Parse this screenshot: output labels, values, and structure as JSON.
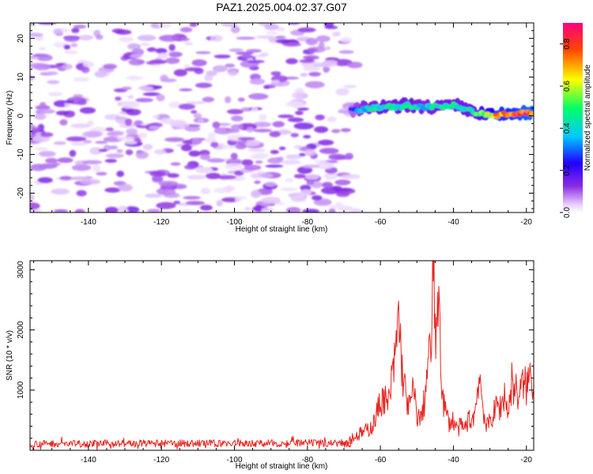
{
  "page_title": "PAZ1.2025.004.02.37.G07",
  "chart_data": [
    {
      "type": "heatmap",
      "title": "PAZ1.2025.004.02.37.G07",
      "xlabel": "Height of straight line (km)",
      "ylabel": "Frequency (Hz)",
      "xlim": [
        -156,
        -18
      ],
      "ylim": [
        -25,
        24
      ],
      "xticks": [
        -140,
        -120,
        -100,
        -80,
        -60,
        -40,
        -20
      ],
      "yticks": [
        -20,
        -10,
        0,
        10,
        20
      ],
      "grid": false,
      "colorbar": {
        "label": "Normalized spectral amplitude",
        "range": [
          0,
          0.9
        ],
        "ticks": [
          0.0,
          0.2,
          0.4,
          0.6,
          0.8
        ],
        "tick_labels": [
          "0.0",
          "0.2",
          "0.4",
          "0.6",
          "0.8"
        ],
        "colormap": [
          "#ffffff",
          "#e9d2ff",
          "#8a2be2",
          "#2200ff",
          "#00c8ff",
          "#00ff66",
          "#ffff00",
          "#ff4400",
          "#ff0080"
        ]
      },
      "noise_region": {
        "x_range": [
          -156,
          -68
        ],
        "amplitude_range": [
          0.0,
          0.15
        ]
      },
      "signal_ridge": [
        {
          "x": -68,
          "freq": 1.5,
          "amp": 0.25
        },
        {
          "x": -64,
          "freq": 1.8,
          "amp": 0.4
        },
        {
          "x": -60,
          "freq": 2.2,
          "amp": 0.45
        },
        {
          "x": -56,
          "freq": 2.3,
          "amp": 0.45
        },
        {
          "x": -52,
          "freq": 2.6,
          "amp": 0.45
        },
        {
          "x": -48,
          "freq": 2.3,
          "amp": 0.4
        },
        {
          "x": -44,
          "freq": 2.2,
          "amp": 0.45
        },
        {
          "x": -40,
          "freq": 2.6,
          "amp": 0.45
        },
        {
          "x": -36,
          "freq": 1.6,
          "amp": 0.45
        },
        {
          "x": -32,
          "freq": 0.3,
          "amp": 0.55
        },
        {
          "x": -28,
          "freq": 0.1,
          "amp": 0.75
        },
        {
          "x": -24,
          "freq": 0.5,
          "amp": 0.75
        },
        {
          "x": -20,
          "freq": 0.8,
          "amp": 0.85
        },
        {
          "x": -18,
          "freq": 0.8,
          "amp": 0.85
        }
      ]
    },
    {
      "type": "line",
      "xlabel": "Height of straight line (km)",
      "ylabel": "SNR (10 * v/v)",
      "xlim": [
        -156,
        -18
      ],
      "ylim": [
        0,
        3150
      ],
      "xticks": [
        -140,
        -120,
        -100,
        -80,
        -60,
        -40,
        -20
      ],
      "yticks": [
        1000,
        2000,
        3000
      ],
      "grid": false,
      "line_color": "#e8231e",
      "noise_floor": {
        "x_range": [
          -156,
          -68
        ],
        "mean": 100,
        "spread": 60
      },
      "series": [
        {
          "x": [
            -156,
            -70,
            -68,
            -66,
            -64,
            -62,
            -60,
            -59,
            -58,
            -57,
            -56,
            -55.5,
            -55,
            -54,
            -53,
            -52,
            -51,
            -50,
            -49,
            -48,
            -47,
            -46,
            -45.5,
            -45,
            -44.5,
            -44,
            -43.5,
            -43,
            -42,
            -41,
            -40,
            -39,
            -38,
            -37,
            -36,
            -35,
            -34,
            -33,
            -32,
            -31,
            -30,
            -29,
            -28,
            -27,
            -26,
            -25,
            -24,
            -23,
            -22,
            -21,
            -20,
            -19,
            -18
          ],
          "y": [
            110,
            120,
            200,
            260,
            320,
            420,
            800,
            900,
            700,
            1100,
            1500,
            1900,
            2250,
            1300,
            900,
            700,
            1000,
            600,
            500,
            800,
            1400,
            1800,
            3150,
            2200,
            1600,
            2950,
            1700,
            900,
            600,
            450,
            500,
            350,
            400,
            350,
            500,
            500,
            650,
            1300,
            800,
            350,
            500,
            600,
            750,
            700,
            950,
            600,
            1150,
            1000,
            900,
            1100,
            1050,
            1250,
            1150
          ]
        }
      ]
    }
  ]
}
